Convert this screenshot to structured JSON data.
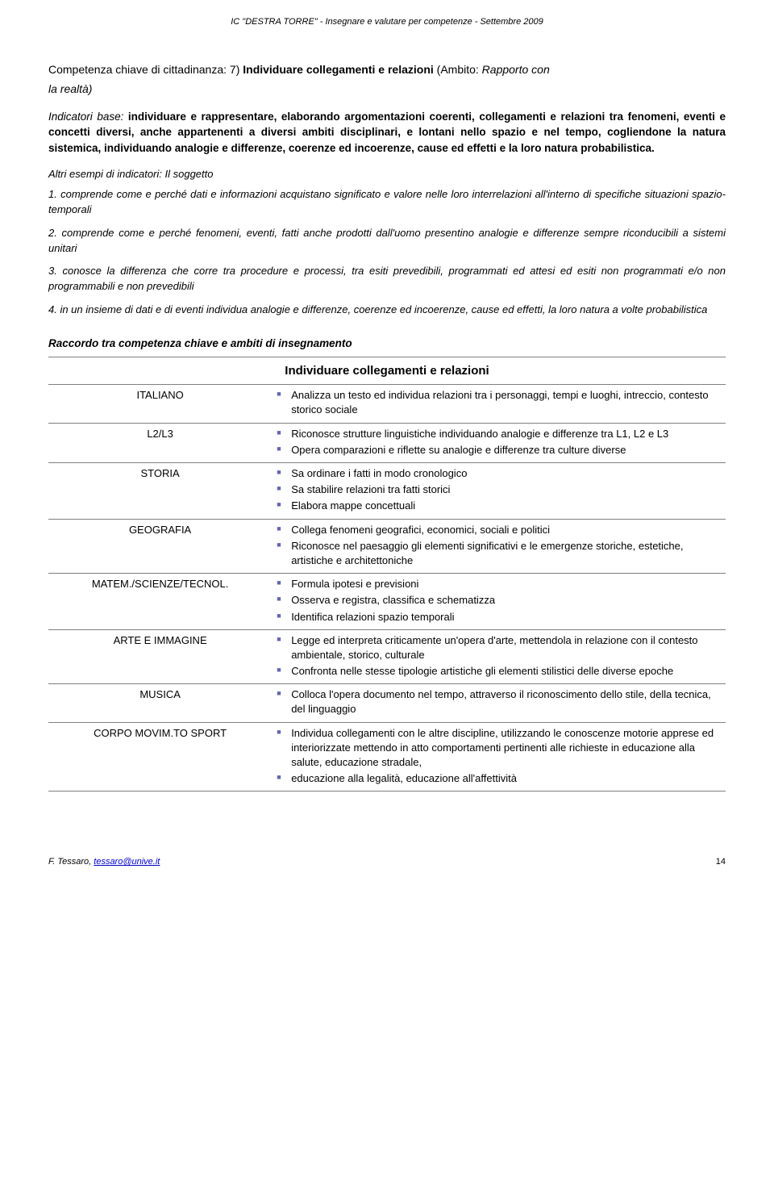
{
  "header": {
    "text": "IC \"DESTRA TORRE\"  - Insegnare e valutare per competenze  - Settembre 2009"
  },
  "competenza": {
    "label": "Competenza chiave di cittadinanza: 7) ",
    "title": "Individuare collegamenti e relazioni",
    "ambito_open": " (Ambito: ",
    "ambito": "Rapporto con",
    "subtitle": "la realtà)"
  },
  "indicator": {
    "lead": "Indicatori base:",
    "bold1": " individuare e rappresentare, elaborando argomentazioni coerenti, collegamenti e relazioni tra fenomeni, eventi e concetti diversi, anche appartenenti a diversi ambiti disciplinari, e lontani nello spazio e nel tempo, cogliendone la natura sistemica, individuando analogie e differenze, coerenze ed incoerenze, cause ed effetti e la loro natura probabilistica."
  },
  "examples": {
    "title": "Altri esempi di indicatori: Il soggetto",
    "items": [
      "1. comprende come e perché dati e informazioni acquistano significato e valore nelle loro interrelazioni all'interno di specifiche situazioni spazio-temporali",
      "2. comprende come e perché fenomeni, eventi, fatti anche prodotti dall'uomo presentino analogie e differenze sempre riconducibili a sistemi unitari",
      "3. conosce la differenza che corre tra procedure e processi, tra esiti prevedibili, programmati ed attesi ed esiti non programmati e/o non programmabili e non prevedibili",
      "4. in un insieme di dati e di eventi individua analogie e differenze, coerenze ed incoerenze, cause ed effetti, la loro natura a volte probabilistica"
    ]
  },
  "raccordo": {
    "title": "Raccordo tra competenza chiave e ambiti di insegnamento",
    "table_heading": "Individuare collegamenti e relazioni",
    "rows": [
      {
        "subject": "ITALIANO",
        "bullets": [
          "Analizza un testo ed individua relazioni tra i personaggi, tempi e luoghi, intreccio, contesto storico sociale"
        ]
      },
      {
        "subject": "L2/L3",
        "bullets": [
          "Riconosce strutture linguistiche individuando analogie e differenze tra L1, L2 e L3",
          "Opera comparazioni e riflette su analogie e differenze tra culture diverse"
        ]
      },
      {
        "subject": "STORIA",
        "bullets": [
          "Sa ordinare i fatti in modo cronologico",
          "Sa stabilire relazioni tra fatti storici",
          "Elabora mappe concettuali"
        ]
      },
      {
        "subject": "GEOGRAFIA",
        "bullets": [
          "Collega fenomeni geografici, economici, sociali e politici",
          "Riconosce nel paesaggio gli elementi significativi e le emergenze storiche, estetiche, artistiche e architettoniche"
        ]
      },
      {
        "subject": "MATEM./SCIENZE/TECNOL.",
        "bullets": [
          "Formula ipotesi e previsioni",
          "Osserva e registra, classifica e schematizza",
          "Identifica relazioni spazio temporali"
        ]
      },
      {
        "subject": "ARTE E IMMAGINE",
        "bullets": [
          "Legge ed interpreta criticamente un'opera d'arte, mettendola in relazione con il contesto ambientale, storico, culturale",
          "Confronta nelle stesse tipologie artistiche gli elementi stilistici delle diverse epoche"
        ]
      },
      {
        "subject": "MUSICA",
        "bullets": [
          "Colloca l'opera documento nel tempo, attraverso il riconoscimento dello stile, della tecnica, del linguaggio"
        ]
      },
      {
        "subject": "CORPO MOVIM.TO SPORT",
        "bullets": [
          "Individua collegamenti con le altre discipline, utilizzando le conoscenze motorie apprese ed interiorizzate mettendo in atto comportamenti pertinenti alle richieste in educazione alla salute, educazione stradale,",
          "educazione alla legalità, educazione all'affettività"
        ]
      }
    ]
  },
  "footer": {
    "author": "F. Tessaro, ",
    "email": "tessaro@unive.it",
    "page": "14"
  },
  "style": {
    "bullet_color": "#6066b0",
    "border_color": "#808080",
    "text_color": "#000000",
    "link_color": "#0000cc",
    "background": "#ffffff"
  }
}
